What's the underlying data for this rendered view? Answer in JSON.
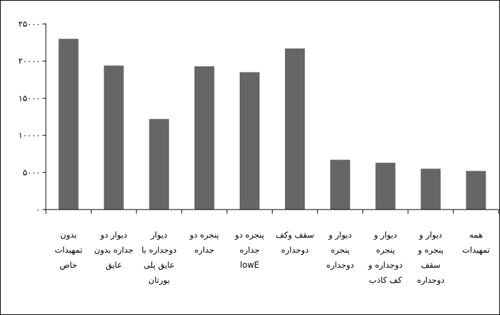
{
  "chart_data": {
    "type": "bar",
    "title": "",
    "xlabel": "",
    "ylabel": "",
    "ylim": [
      0,
      25000
    ],
    "yticks": [
      0,
      5000,
      10000,
      15000,
      20000,
      25000
    ],
    "ytick_labels": [
      "۰",
      "۵۰۰۰",
      "۱۰۰۰۰",
      "۱۵۰۰۰",
      "۲۰۰۰۰",
      "۲۵۰۰۰"
    ],
    "grid": false,
    "legend": "none",
    "bar_color": "#666666",
    "categories": [
      [
        "بدون",
        "تمهیدات",
        "خاص"
      ],
      [
        "دیوار دو",
        "جداره بدون",
        "عایق"
      ],
      [
        "دیوار",
        "دوجداره با",
        "عایق پلی",
        "یورتان"
      ],
      [
        "پنجره دو",
        "جداره"
      ],
      [
        "پنجره دو",
        "جداره",
        "lowE"
      ],
      [
        "سقف وکف",
        "دوجداره"
      ],
      [
        "دیوار و",
        "پنجره",
        "دوجداره"
      ],
      [
        "دیوار و",
        "پنجره",
        "دوجداره و",
        "کف کاذب"
      ],
      [
        "دیوار و",
        "پنجره و",
        "سقف",
        "دوجداره"
      ],
      [
        "همه",
        "تمهیدات"
      ]
    ],
    "values": [
      23000,
      19400,
      12200,
      19300,
      18500,
      21700,
      6700,
      6300,
      5500,
      5200
    ]
  }
}
